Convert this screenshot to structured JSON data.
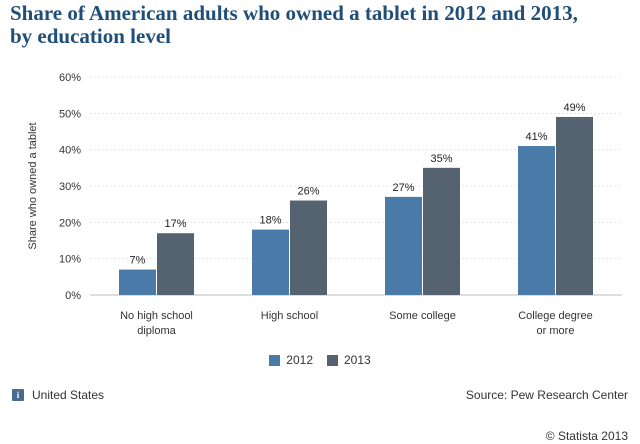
{
  "title_lines": [
    "Share of American adults who owned a tablet in 2012 and 2013,",
    "by education level"
  ],
  "chart_data": {
    "type": "bar",
    "title": "Share of American adults who owned a tablet in 2012 and 2013, by education level",
    "xlabel": "",
    "ylabel": "Share who owned a tablet",
    "ylim": [
      0,
      60
    ],
    "yticks": [
      "0%",
      "10%",
      "20%",
      "30%",
      "40%",
      "50%",
      "60%"
    ],
    "ytick_values": [
      0,
      10,
      20,
      30,
      40,
      50,
      60
    ],
    "categories": [
      [
        "No high school",
        "diploma"
      ],
      [
        "High school"
      ],
      [
        "Some college"
      ],
      [
        "College degree",
        "or more"
      ]
    ],
    "series": [
      {
        "name": "2012",
        "color": "#4a7aa7",
        "values": [
          7,
          18,
          27,
          41
        ],
        "labels": [
          "7%",
          "18%",
          "27%",
          "41%"
        ]
      },
      {
        "name": "2013",
        "color": "#556270",
        "values": [
          17,
          26,
          35,
          49
        ],
        "labels": [
          "17%",
          "26%",
          "35%",
          "49%"
        ]
      }
    ],
    "grid": true,
    "legend": "bottom-center"
  },
  "footer": {
    "region": "United States",
    "source": "Source: Pew Research Center",
    "copyright": "© Statista 2013",
    "info_icon": "i"
  }
}
